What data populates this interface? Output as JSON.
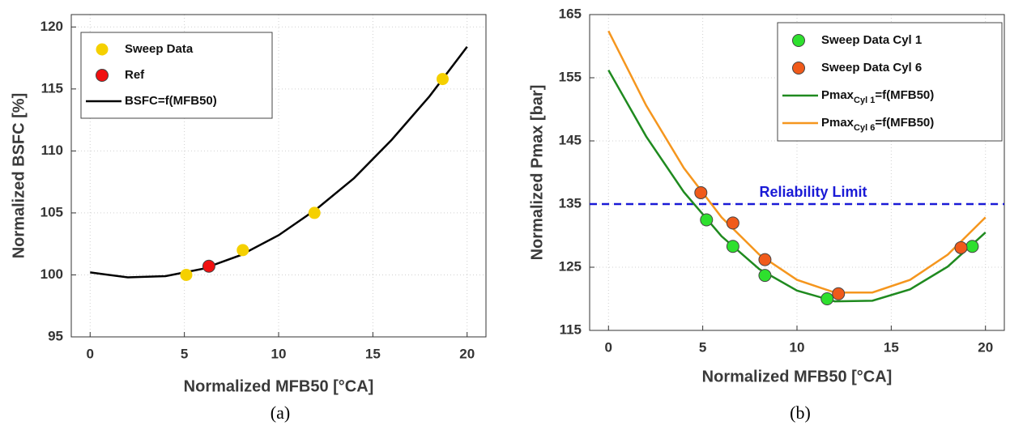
{
  "chart_data": [
    {
      "type": "line",
      "caption": "(a)",
      "xlabel": "Normalized MFB50 [°CA]",
      "ylabel": "Normalized BSFC [%]",
      "xlim": [
        -1,
        21
      ],
      "xticks": [
        0,
        5,
        10,
        15,
        20
      ],
      "ylim": [
        95,
        121
      ],
      "yticks": [
        95,
        100,
        105,
        110,
        115,
        120
      ],
      "grid": true,
      "legend": "upper left",
      "series": [
        {
          "name": "Sweep Data",
          "type": "scatter",
          "color": "#f5d000",
          "x": [
            5.1,
            8.1,
            11.9,
            18.7
          ],
          "values": [
            100,
            102,
            105,
            115.8
          ]
        },
        {
          "name": "Ref",
          "type": "scatter",
          "color": "#f01010",
          "x": [
            6.3
          ],
          "values": [
            100.7
          ]
        },
        {
          "name": "BSFC=f(MFB50)",
          "type": "line",
          "color": "#000000",
          "x": [
            0,
            2,
            4,
            6,
            8,
            10,
            12,
            14,
            16,
            18,
            20
          ],
          "values": [
            100.2,
            99.8,
            99.9,
            100.5,
            101.6,
            103.2,
            105.3,
            107.8,
            110.9,
            114.4,
            118.4
          ]
        }
      ]
    },
    {
      "type": "line",
      "caption": "(b)",
      "xlabel": "Normalized MFB50 [°CA]",
      "ylabel": "Normalized Pmax [bar]",
      "xlim": [
        -1,
        21
      ],
      "xticks": [
        0,
        5,
        10,
        15,
        20
      ],
      "ylim": [
        115,
        165
      ],
      "yticks": [
        115,
        125,
        135,
        145,
        155,
        165
      ],
      "grid": true,
      "legend": "upper right",
      "hlines": [
        {
          "value": 135,
          "label": "Reliability Limit",
          "color": "#1a1ad6"
        }
      ],
      "series": [
        {
          "name": "Sweep Data Cyl 1",
          "type": "scatter",
          "color": "#2ee02e",
          "x": [
            5.2,
            6.6,
            8.3,
            11.6,
            19.3
          ],
          "values": [
            132.5,
            128.3,
            123.7,
            120,
            128.3
          ]
        },
        {
          "name": "Sweep Data Cyl 6",
          "type": "scatter",
          "color": "#f05a1a",
          "x": [
            4.9,
            6.6,
            8.3,
            12.2,
            18.7
          ],
          "values": [
            136.8,
            132,
            126.2,
            120.8,
            128.1
          ]
        },
        {
          "name": "Pmax",
          "name_sub": "Cyl 1",
          "name_suffix": "=f(MFB50)",
          "type": "line",
          "color": "#1f8a1f",
          "x": [
            0,
            2,
            4,
            6,
            8,
            10,
            12,
            14,
            16,
            18,
            20
          ],
          "values": [
            156.2,
            145.7,
            136.9,
            129.9,
            124.7,
            121.3,
            119.6,
            119.7,
            121.5,
            125.1,
            130.5
          ]
        },
        {
          "name": "Pmax",
          "name_sub": "Cyl 6",
          "name_suffix": "=f(MFB50)",
          "type": "line",
          "color": "#f5961e",
          "x": [
            0,
            2,
            4,
            6,
            8,
            10,
            12,
            14,
            16,
            18,
            20
          ],
          "values": [
            162.4,
            150.6,
            140.7,
            132.9,
            127.0,
            123.0,
            121.0,
            121.0,
            123.0,
            127.0,
            132.9
          ]
        }
      ]
    }
  ]
}
